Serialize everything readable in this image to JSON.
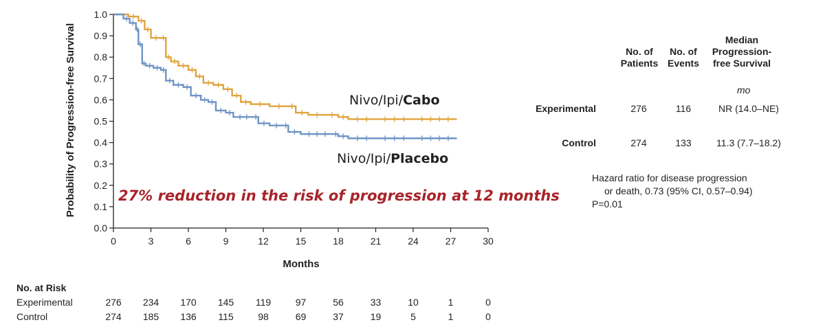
{
  "chart_data": {
    "type": "line",
    "xlabel": "Months",
    "ylabel": "Probability of Progression-free Survival",
    "xlim": [
      0,
      30
    ],
    "ylim": [
      0,
      1.0
    ],
    "xticks": [
      0,
      3,
      6,
      9,
      12,
      15,
      18,
      21,
      24,
      27,
      30
    ],
    "yticks": [
      "0.0",
      "0.1",
      "0.2",
      "0.3",
      "0.4",
      "0.5",
      "0.6",
      "0.7",
      "0.8",
      "0.9",
      "1.0"
    ],
    "grid": false,
    "series": [
      {
        "name": "Nivo/Ipi/Cabo",
        "color": "#e0a33e",
        "points": [
          [
            0,
            1.0
          ],
          [
            1.2,
            0.99
          ],
          [
            2.0,
            0.97
          ],
          [
            2.5,
            0.93
          ],
          [
            3.0,
            0.89
          ],
          [
            3.8,
            0.89
          ],
          [
            4.2,
            0.8
          ],
          [
            4.6,
            0.78
          ],
          [
            5.2,
            0.76
          ],
          [
            6.0,
            0.74
          ],
          [
            6.6,
            0.71
          ],
          [
            7.2,
            0.68
          ],
          [
            8.0,
            0.67
          ],
          [
            8.8,
            0.65
          ],
          [
            9.5,
            0.62
          ],
          [
            10.2,
            0.59
          ],
          [
            11.0,
            0.58
          ],
          [
            12.5,
            0.57
          ],
          [
            14.0,
            0.57
          ],
          [
            14.6,
            0.54
          ],
          [
            15.6,
            0.53
          ],
          [
            17.0,
            0.53
          ],
          [
            18.0,
            0.52
          ],
          [
            18.8,
            0.51
          ],
          [
            21.0,
            0.51
          ],
          [
            24.0,
            0.51
          ],
          [
            27.5,
            0.51
          ]
        ]
      },
      {
        "name": "Nivo/Ipi/Placebo",
        "color": "#6e93c6",
        "points": [
          [
            0,
            1.0
          ],
          [
            0.8,
            0.98
          ],
          [
            1.3,
            0.96
          ],
          [
            1.8,
            0.93
          ],
          [
            2.0,
            0.86
          ],
          [
            2.3,
            0.77
          ],
          [
            2.6,
            0.76
          ],
          [
            3.2,
            0.75
          ],
          [
            3.8,
            0.74
          ],
          [
            4.2,
            0.69
          ],
          [
            4.8,
            0.67
          ],
          [
            5.6,
            0.66
          ],
          [
            6.2,
            0.62
          ],
          [
            7.0,
            0.6
          ],
          [
            7.6,
            0.59
          ],
          [
            8.2,
            0.55
          ],
          [
            9.0,
            0.54
          ],
          [
            9.6,
            0.52
          ],
          [
            11.2,
            0.52
          ],
          [
            11.6,
            0.49
          ],
          [
            12.5,
            0.48
          ],
          [
            13.6,
            0.48
          ],
          [
            14.0,
            0.45
          ],
          [
            15.0,
            0.44
          ],
          [
            17.6,
            0.44
          ],
          [
            18.0,
            0.43
          ],
          [
            18.8,
            0.42
          ],
          [
            21.0,
            0.42
          ],
          [
            24.0,
            0.42
          ],
          [
            27.5,
            0.42
          ]
        ]
      }
    ],
    "labels": {
      "cabo": {
        "prefix": "Nivo/Ipi/",
        "bold": "Cabo"
      },
      "placebo": {
        "prefix": "Nivo/Ipi/",
        "bold": "Placebo"
      }
    },
    "annotation": "27% reduction in the risk of progression at 12 months"
  },
  "summary_table": {
    "headers": {
      "patients": [
        "No. of",
        "Patients"
      ],
      "events": [
        "No. of",
        "Events"
      ],
      "median": [
        "Median",
        "Progression-",
        "free Survival"
      ]
    },
    "units": "mo",
    "rows": [
      {
        "label": "Experimental",
        "patients": "276",
        "events": "116",
        "median": "NR (14.0–NE)"
      },
      {
        "label": "Control",
        "patients": "274",
        "events": "133",
        "median": "11.3 (7.7–18.2)"
      }
    ]
  },
  "hazard": {
    "line1": "Hazard ratio for disease progression",
    "line2": "or death, 0.73 (95% CI, 0.57–0.94)",
    "line3": "P=0.01"
  },
  "number_at_risk": {
    "title": "No. at Risk",
    "rows": [
      {
        "label": "Experimental",
        "values": [
          "276",
          "234",
          "170",
          "145",
          "119",
          "97",
          "56",
          "33",
          "10",
          "1",
          "0"
        ]
      },
      {
        "label": "Control",
        "values": [
          "274",
          "185",
          "136",
          "115",
          "98",
          "69",
          "37",
          "19",
          "5",
          "1",
          "0"
        ]
      }
    ]
  }
}
